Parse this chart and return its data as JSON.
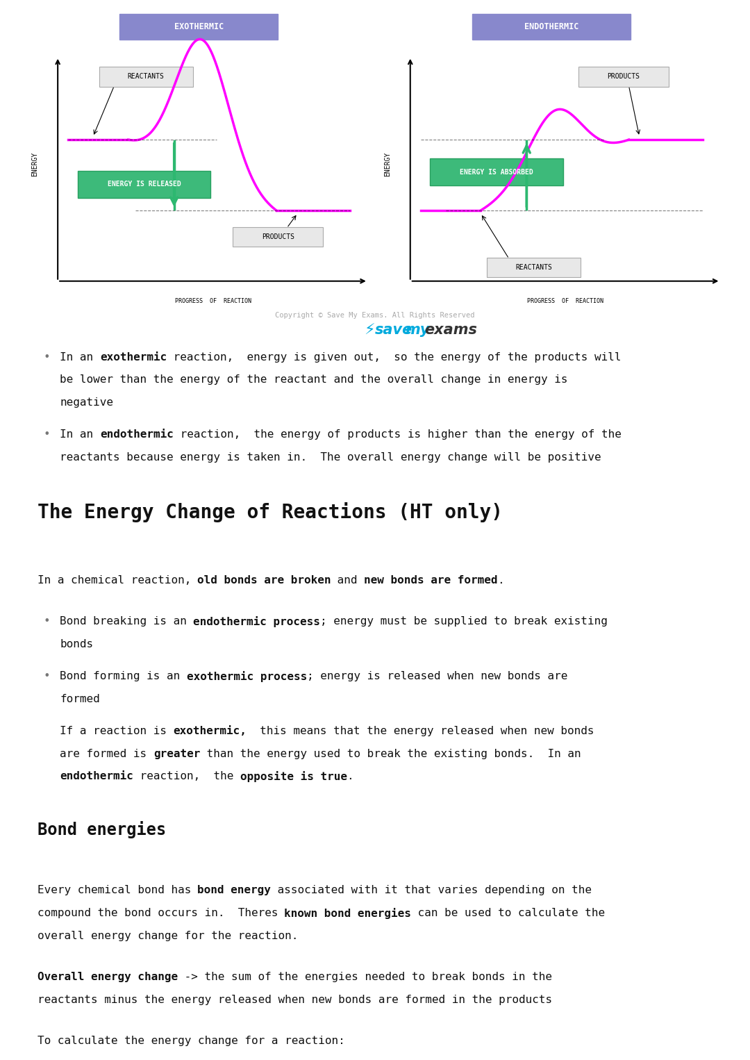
{
  "bg_color": "#ffffff",
  "exo_title": "EXOTHERMIC",
  "endo_title": "ENDOTHERMIC",
  "title_box_color": "#8888cc",
  "curve_color": "#ff00ff",
  "green_box_color": "#3dba7a",
  "green_arrow_color": "#2db870",
  "label_box_color": "#e8e8e8",
  "label_box_edge": "#aaaaaa",
  "axis_color": "#000000",
  "energy_label": "ENERGY",
  "progress_label": "PROGRESS  OF  REACTION",
  "reactants_label": "REACTANTS",
  "products_label": "PRODUCTS",
  "energy_released_label": "ENERGY IS RELEASED",
  "energy_absorbed_label": "ENERGY IS ABSORBED",
  "text_color": "#111111",
  "bullet_color": "#777777",
  "title2": "The Energy Change of Reactions (HT only)",
  "title3": "Bond energies",
  "copyright_text": "Copyright © Save My Exams. All Rights Reserved",
  "mono": "monospace"
}
